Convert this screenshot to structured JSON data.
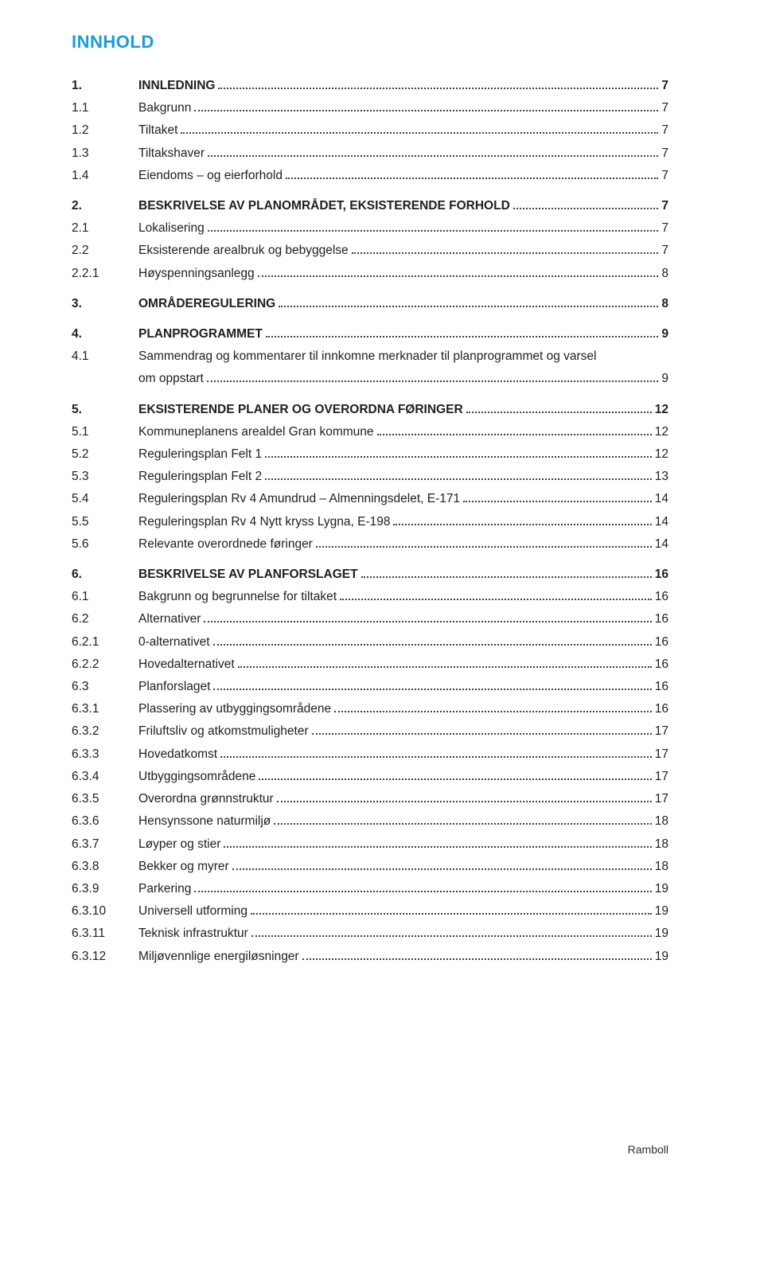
{
  "heading": "INNHOLD",
  "colors": {
    "heading": "#1b9dd9",
    "text": "#202020",
    "leader": "#404040",
    "background": "#ffffff"
  },
  "typography": {
    "heading_fontsize": 22,
    "body_fontsize": 15.5,
    "line_height": 1.82,
    "font_family": "Verdana"
  },
  "footer": "Ramboll",
  "entries": [
    {
      "num": "1.",
      "title": "INNLEDNING",
      "page": "7",
      "bold": true,
      "gap_before": false
    },
    {
      "num": "1.1",
      "title": "Bakgrunn",
      "page": "7",
      "bold": false
    },
    {
      "num": "1.2",
      "title": "Tiltaket",
      "page": "7",
      "bold": false
    },
    {
      "num": "1.3",
      "title": "Tiltakshaver",
      "page": "7",
      "bold": false
    },
    {
      "num": "1.4",
      "title": "Eiendoms – og eierforhold",
      "page": "7",
      "bold": false
    },
    {
      "num": "2.",
      "title": "BESKRIVELSE AV PLANOMRÅDET, EKSISTERENDE FORHOLD",
      "page": "7",
      "bold": true,
      "gap_before": true,
      "tight_leader": true
    },
    {
      "num": "2.1",
      "title": "Lokalisering",
      "page": "7",
      "bold": false
    },
    {
      "num": "2.2",
      "title": "Eksisterende arealbruk og bebyggelse",
      "page": "7",
      "bold": false
    },
    {
      "num": "2.2.1",
      "title": "Høyspenningsanlegg",
      "page": "8",
      "bold": false
    },
    {
      "num": "3.",
      "title": "OMRÅDEREGULERING",
      "page": "8",
      "bold": true,
      "gap_before": true
    },
    {
      "num": "4.",
      "title": "PLANPROGRAMMET",
      "page": "9",
      "bold": true,
      "gap_before": true
    },
    {
      "num": "4.1",
      "title_lines": [
        "Sammendrag og kommentarer til innkomne merknader til planprogrammet og varsel",
        "om oppstart"
      ],
      "page": "9",
      "bold": false
    },
    {
      "num": "5.",
      "title": "EKSISTERENDE PLANER OG OVERORDNA FØRINGER",
      "page": "12",
      "bold": true,
      "gap_before": true
    },
    {
      "num": "5.1",
      "title": "Kommuneplanens arealdel Gran kommune",
      "page": "12",
      "bold": false
    },
    {
      "num": "5.2",
      "title": "Reguleringsplan Felt 1",
      "page": "12",
      "bold": false
    },
    {
      "num": "5.3",
      "title": "Reguleringsplan Felt 2",
      "page": "13",
      "bold": false
    },
    {
      "num": "5.4",
      "title": "Reguleringsplan Rv 4 Amundrud – Almenningsdelet, E-171",
      "page": "14",
      "bold": false
    },
    {
      "num": "5.5",
      "title": "Reguleringsplan Rv 4 Nytt kryss Lygna, E-198",
      "page": "14",
      "bold": false
    },
    {
      "num": "5.6",
      "title": "Relevante overordnede føringer",
      "page": "14",
      "bold": false
    },
    {
      "num": "6.",
      "title": "BESKRIVELSE AV PLANFORSLAGET",
      "page": "16",
      "bold": true,
      "gap_before": true
    },
    {
      "num": "6.1",
      "title": "Bakgrunn og begrunnelse for tiltaket",
      "page": "16",
      "bold": false
    },
    {
      "num": "6.2",
      "title": "Alternativer",
      "page": "16",
      "bold": false
    },
    {
      "num": "6.2.1",
      "title": "0-alternativet",
      "page": "16",
      "bold": false
    },
    {
      "num": "6.2.2",
      "title": "Hovedalternativet",
      "page": "16",
      "bold": false
    },
    {
      "num": "6.3",
      "title": "Planforslaget",
      "page": "16",
      "bold": false
    },
    {
      "num": "6.3.1",
      "title": "Plassering av utbyggingsområdene",
      "page": "16",
      "bold": false
    },
    {
      "num": "6.3.2",
      "title": "Friluftsliv og atkomstmuligheter",
      "page": "17",
      "bold": false
    },
    {
      "num": "6.3.3",
      "title": "Hovedatkomst",
      "page": "17",
      "bold": false
    },
    {
      "num": "6.3.4",
      "title": "Utbyggingsområdene",
      "page": "17",
      "bold": false
    },
    {
      "num": "6.3.5",
      "title": "Overordna grønnstruktur",
      "page": "17",
      "bold": false
    },
    {
      "num": "6.3.6",
      "title": "Hensynssone naturmiljø",
      "page": "18",
      "bold": false
    },
    {
      "num": "6.3.7",
      "title": "Løyper og stier",
      "page": "18",
      "bold": false
    },
    {
      "num": "6.3.8",
      "title": "Bekker og myrer",
      "page": "18",
      "bold": false
    },
    {
      "num": "6.3.9",
      "title": "Parkering",
      "page": "19",
      "bold": false
    },
    {
      "num": "6.3.10",
      "title": "Universell utforming",
      "page": "19",
      "bold": false
    },
    {
      "num": "6.3.11",
      "title": "Teknisk infrastruktur",
      "page": "19",
      "bold": false
    },
    {
      "num": "6.3.12",
      "title": "Miljøvennlige energiløsninger",
      "page": "19",
      "bold": false
    }
  ]
}
